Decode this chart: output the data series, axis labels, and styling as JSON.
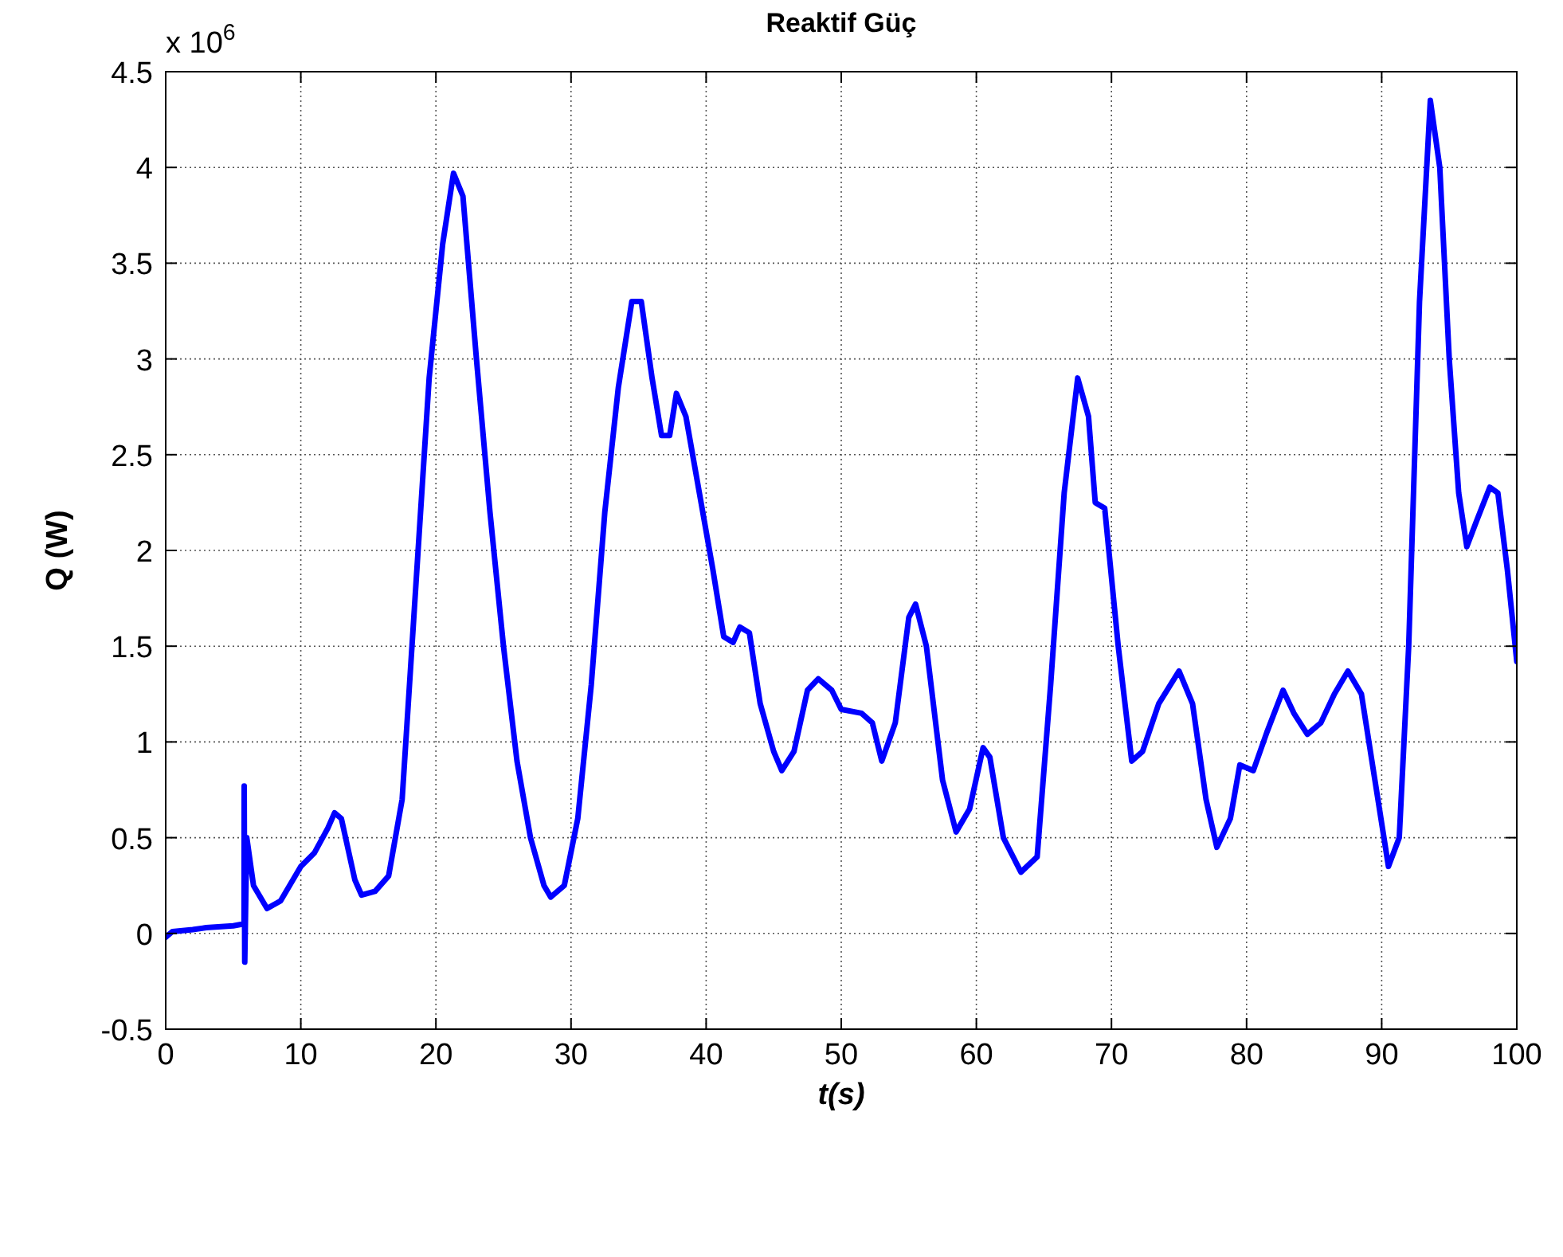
{
  "chart_data": {
    "type": "line",
    "title": "Reaktif Güç",
    "xlabel": "t(s)",
    "ylabel": "Q (W)",
    "annotations": [
      "x 10$^{6}$"
    ],
    "xlim": [
      0,
      100
    ],
    "xticks": [
      0,
      10,
      20,
      30,
      40,
      50,
      60,
      70,
      80,
      90,
      100
    ],
    "ylim": [
      -0.5,
      4.5
    ],
    "yticks": [
      -0.5,
      0,
      0.5,
      1,
      1.5,
      2,
      2.5,
      3,
      3.5,
      4,
      4.5
    ],
    "grid": true,
    "line_style": "solid",
    "series": [
      {
        "color": "#0000ff",
        "x": [
          0,
          0.5,
          2,
          3,
          5,
          5.8,
          5.81,
          5.85,
          6,
          6.5,
          7.5,
          8.5,
          10,
          11,
          12,
          12.5,
          13,
          14,
          14.5,
          15.5,
          16.5,
          17.5,
          18.5,
          19.5,
          20.5,
          21.3,
          22,
          23,
          24,
          25,
          26,
          27,
          28,
          28.5,
          29.5,
          30.5,
          31.5,
          32.5,
          33.5,
          34.5,
          35.2,
          36,
          36.7,
          37.3,
          37.8,
          38.5,
          39.5,
          40.5,
          41.3,
          42,
          42.5,
          43.2,
          44,
          45,
          45.6,
          46.5,
          47.5,
          48.3,
          49.3,
          50,
          51.5,
          52.3,
          53,
          54,
          55,
          55.5,
          56.3,
          57.5,
          58.5,
          59.5,
          60.5,
          61,
          62,
          63.3,
          64.5,
          65.5,
          66.5,
          67.5,
          68.3,
          68.8,
          69.5,
          70.5,
          71.5,
          72.3,
          73.5,
          75,
          76,
          77,
          77.8,
          78.8,
          79.5,
          80.5,
          81.5,
          82.7,
          83.5,
          84.5,
          85.5,
          86.5,
          87.5,
          88.5,
          89.5,
          90.5,
          91.3,
          92,
          92.8,
          93.6,
          94.3,
          95,
          95.7,
          96.3,
          97,
          98,
          98.6,
          99.3,
          100
        ],
        "values": [
          -0.02,
          0.01,
          0.02,
          0.03,
          0.04,
          0.05,
          0.77,
          -0.15,
          0.5,
          0.25,
          0.13,
          0.17,
          0.35,
          0.42,
          0.55,
          0.63,
          0.6,
          0.28,
          0.2,
          0.22,
          0.3,
          0.7,
          1.8,
          2.9,
          3.6,
          3.97,
          3.85,
          3.0,
          2.2,
          1.5,
          0.9,
          0.5,
          0.25,
          0.19,
          0.25,
          0.6,
          1.3,
          2.2,
          2.85,
          3.3,
          3.3,
          2.9,
          2.6,
          2.6,
          2.82,
          2.7,
          2.3,
          1.9,
          1.55,
          1.52,
          1.6,
          1.57,
          1.2,
          0.95,
          0.85,
          0.95,
          1.27,
          1.33,
          1.27,
          1.17,
          1.15,
          1.1,
          0.9,
          1.1,
          1.65,
          1.72,
          1.5,
          0.8,
          0.53,
          0.65,
          0.97,
          0.92,
          0.5,
          0.32,
          0.4,
          1.3,
          2.3,
          2.9,
          2.7,
          2.25,
          2.22,
          1.5,
          0.9,
          0.95,
          1.2,
          1.37,
          1.2,
          0.7,
          0.45,
          0.6,
          0.88,
          0.85,
          1.05,
          1.27,
          1.15,
          1.04,
          1.1,
          1.25,
          1.37,
          1.25,
          0.8,
          0.35,
          0.5,
          1.5,
          3.3,
          4.35,
          4.0,
          3.0,
          2.3,
          2.02,
          2.15,
          2.33,
          2.3,
          1.9,
          1.42
        ]
      }
    ]
  }
}
